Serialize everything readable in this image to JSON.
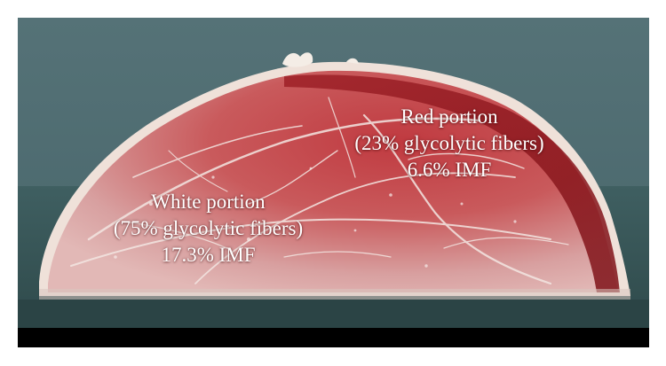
{
  "labels": {
    "red_portion": {
      "title": "Red portion",
      "fibers": "(23% glycolytic fibers)",
      "imf": "6.6% IMF"
    },
    "white_portion": {
      "title": "White portion",
      "fibers": "(75% glycolytic fibers)",
      "imf": "17.3% IMF"
    }
  },
  "colors": {
    "background_wall": "#4d6a6e",
    "counter": "#3e5a5c",
    "bottom_band": "#000000",
    "meat_red": "#b8323a",
    "meat_pale": "#d9a9a8",
    "fat": "#f4ece6",
    "label_text": "#ffffff"
  }
}
